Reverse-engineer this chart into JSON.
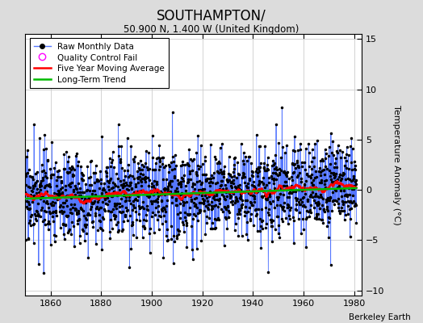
{
  "title": "SOUTHAMPTON/",
  "subtitle": "50.900 N, 1.400 W (United Kingdom)",
  "ylabel": "Temperature Anomaly (°C)",
  "credit": "Berkeley Earth",
  "xlim": [
    1850,
    1983
  ],
  "ylim": [
    -10.5,
    15.5
  ],
  "yticks": [
    -10,
    -5,
    0,
    5,
    10,
    15
  ],
  "xticks": [
    1860,
    1880,
    1900,
    1920,
    1940,
    1960,
    1980
  ],
  "year_start": 1850,
  "year_end": 1980,
  "seed": 17,
  "raw_line_color": "#5577FF",
  "raw_dot_color": "#000000",
  "moving_avg_color": "#FF0000",
  "trend_color": "#00BB00",
  "qc_color": "#FF00FF",
  "fig_background_color": "#DCDCDC",
  "plot_background_color": "#FFFFFF",
  "noise_std": 2.2,
  "trend_slope": 0.008,
  "trend_intercept": -0.35,
  "moving_avg_window": 60
}
